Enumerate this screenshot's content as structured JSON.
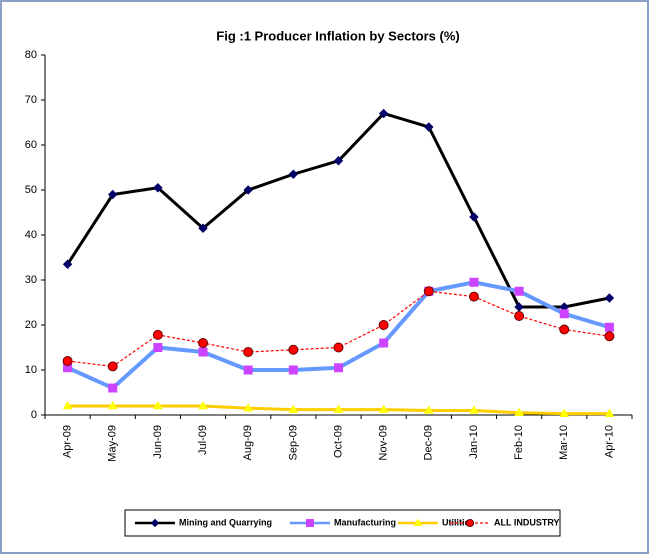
{
  "chart_data": {
    "type": "line",
    "title": "Fig :1 Producer Inflation by Sectors (%)",
    "categories": [
      "Apr-09",
      "May-09",
      "Jun-09",
      "Jul-09",
      "Aug-09",
      "Sep-09",
      "Oct-09",
      "Nov-09",
      "Dec-09",
      "Jan-10",
      "Feb-10",
      "Mar-10",
      "Apr-10"
    ],
    "series": [
      {
        "name": "Mining and Quarrying",
        "color": "#000000",
        "marker_color": "#000066",
        "marker": "diamond",
        "dashed": false,
        "values": [
          33.5,
          49,
          50.5,
          41.5,
          50,
          53.5,
          56.5,
          67,
          64,
          44,
          24,
          24,
          26
        ]
      },
      {
        "name": "Manufacturing",
        "color": "#6699ff",
        "marker_color": "#cc44ff",
        "marker": "square",
        "dashed": false,
        "values": [
          10.5,
          6,
          15,
          14,
          10,
          10,
          10.5,
          16,
          27.5,
          29.5,
          27.5,
          22.5,
          19.5
        ]
      },
      {
        "name": "Utilities",
        "color": "#ffcc00",
        "marker_color": "#ffff00",
        "marker": "triangle",
        "dashed": false,
        "values": [
          2,
          2,
          2,
          2,
          1.5,
          1.2,
          1.2,
          1.2,
          1,
          1,
          0.5,
          0.3,
          0.3
        ]
      },
      {
        "name": "ALL INDUSTRY",
        "color": "#ff0000",
        "marker_color": "#ff0000",
        "marker": "circle",
        "dashed": true,
        "values": [
          12,
          10.8,
          17.8,
          16,
          14,
          14.5,
          15,
          20,
          27.5,
          26.3,
          22,
          19,
          17.5
        ]
      }
    ],
    "ylim": [
      0,
      80
    ],
    "yticks": [
      0,
      10,
      20,
      30,
      40,
      50,
      60,
      70,
      80
    ],
    "legend": "bottom"
  }
}
